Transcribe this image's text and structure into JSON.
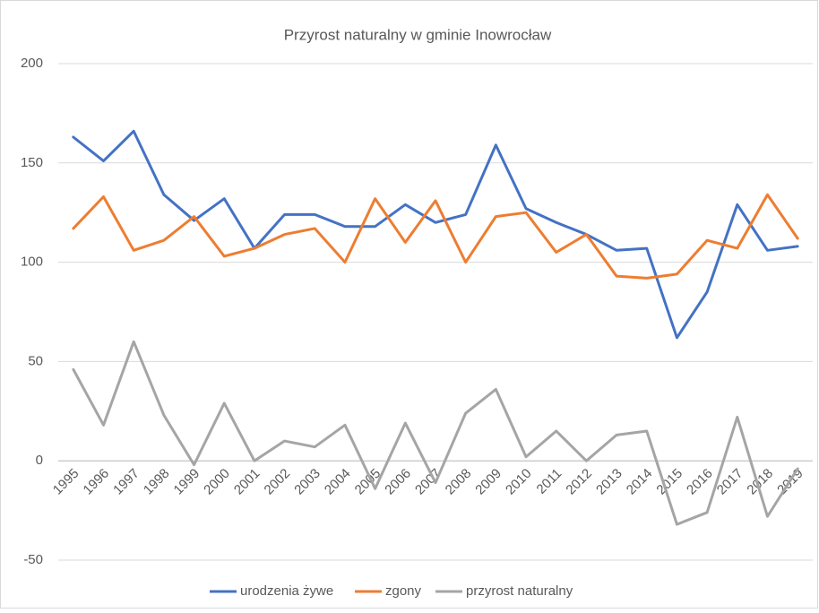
{
  "chart_data": {
    "type": "line",
    "title": "Przyrost naturalny w gminie Inowrocław",
    "categories": [
      "1995",
      "1996",
      "1997",
      "1998",
      "1999",
      "2000",
      "2001",
      "2002",
      "2003",
      "2004",
      "2005",
      "2006",
      "2007",
      "2008",
      "2009",
      "2010",
      "2011",
      "2012",
      "2013",
      "2014",
      "2015",
      "2016",
      "2017",
      "2018",
      "2019"
    ],
    "series": [
      {
        "name": "urodzenia żywe",
        "color": "#4472c4",
        "values": [
          163,
          151,
          166,
          134,
          121,
          132,
          107,
          124,
          124,
          118,
          118,
          129,
          120,
          124,
          159,
          127,
          120,
          114,
          106,
          107,
          62,
          85,
          129,
          106,
          108
        ]
      },
      {
        "name": "zgony",
        "color": "#ed7d31",
        "values": [
          117,
          133,
          106,
          111,
          123,
          103,
          107,
          114,
          117,
          100,
          132,
          110,
          131,
          100,
          123,
          125,
          105,
          114,
          93,
          92,
          94,
          111,
          107,
          134,
          112
        ]
      },
      {
        "name": "przyrost naturalny",
        "color": "#a5a5a5",
        "values": [
          46,
          18,
          60,
          23,
          -2,
          29,
          0,
          10,
          7,
          18,
          -14,
          19,
          -11,
          24,
          36,
          2,
          15,
          0,
          13,
          15,
          -32,
          -26,
          22,
          -28,
          -4
        ]
      }
    ],
    "ylim": [
      -50,
      200
    ],
    "yticks": [
      -50,
      0,
      50,
      100,
      150,
      200
    ],
    "grid": true,
    "legend": "bottom"
  }
}
